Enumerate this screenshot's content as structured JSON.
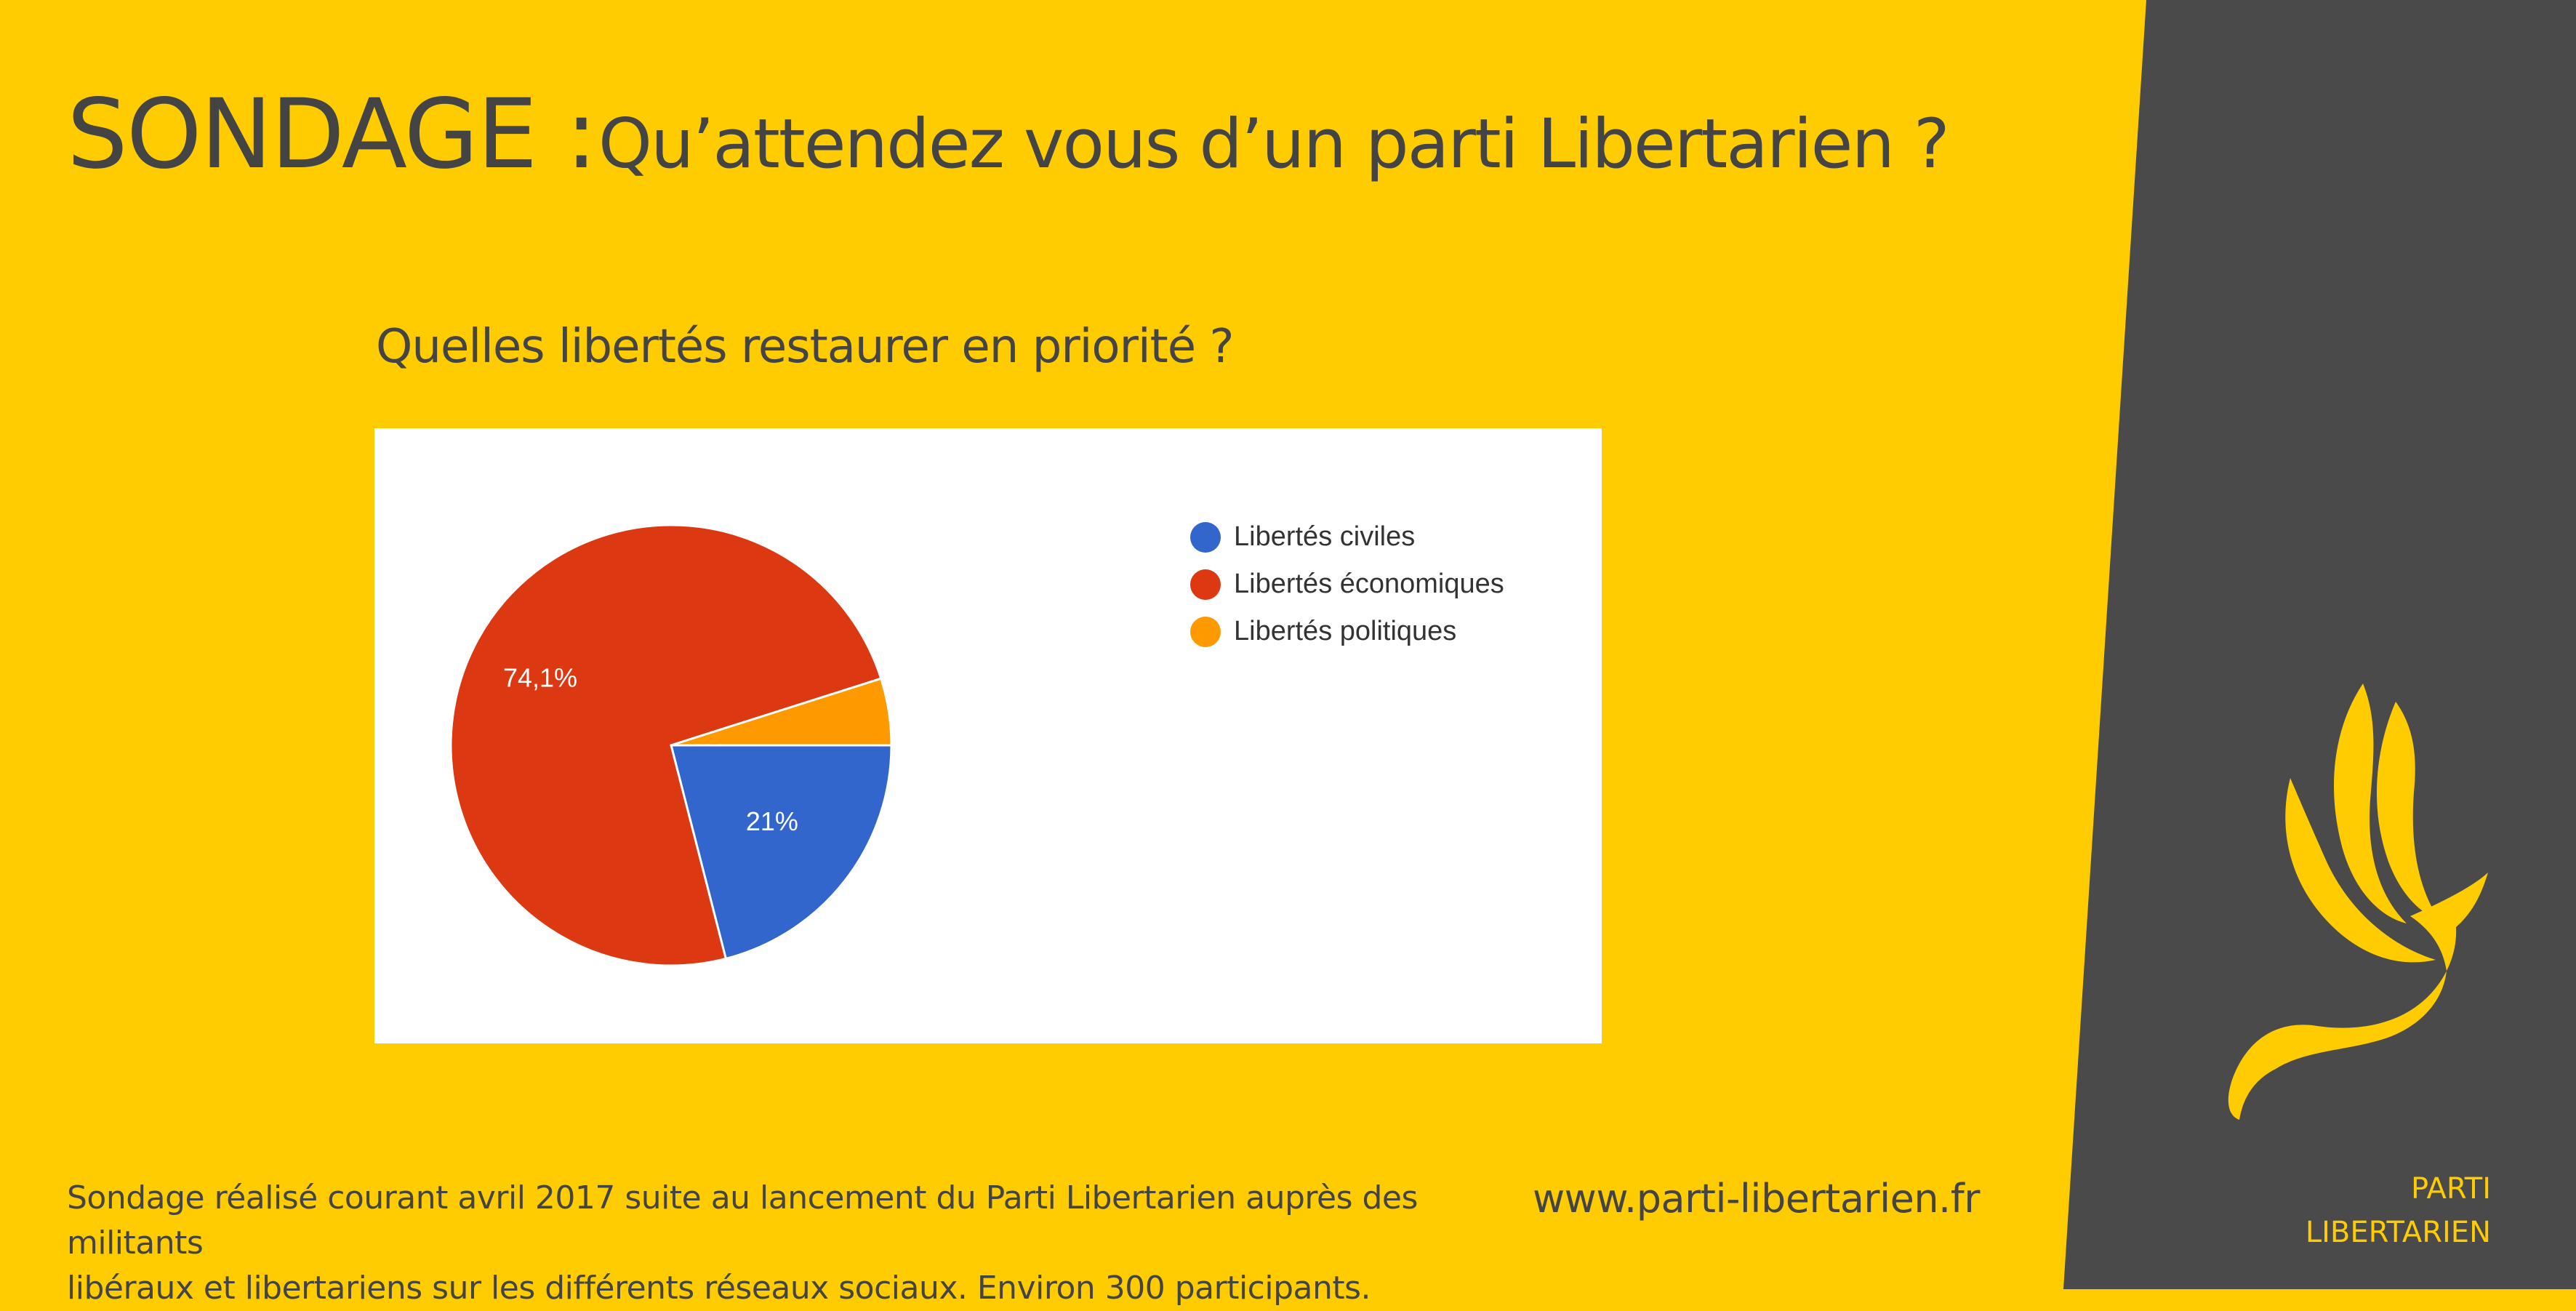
{
  "colors": {
    "background": "#FECC00",
    "panel": "#4A4A4A",
    "text": "#444444",
    "brand": "#FECC00"
  },
  "header": {
    "title_main": "SONDAGE :",
    "title_sub": "Qu’attendez vous d’un parti Libertarien ?"
  },
  "question": "Quelles libertés restaurer en priorité ?",
  "chart_data": {
    "type": "pie",
    "categories": [
      "Libertés civiles",
      "Libertés économiques",
      "Libertés politiques"
    ],
    "values": [
      21,
      74.1,
      4.9
    ],
    "colors": [
      "#3366CC",
      "#DC3912",
      "#FF9900"
    ],
    "data_labels": [
      "21%",
      "74,1%",
      ""
    ],
    "legend_position": "top-right"
  },
  "footer": {
    "note_line1": "Sondage réalisé courant avril 2017 suite au lancement du Parti Libertarien auprès des militants",
    "note_line2": "libéraux et libertariens sur les différents réseaux sociaux. Environ 300 participants.",
    "website": "www.parti-libertarien.fr"
  },
  "brand": {
    "line1": "PARTI",
    "line2": "LIBERTARIEN",
    "logo_icon": "bird-logo-icon"
  }
}
